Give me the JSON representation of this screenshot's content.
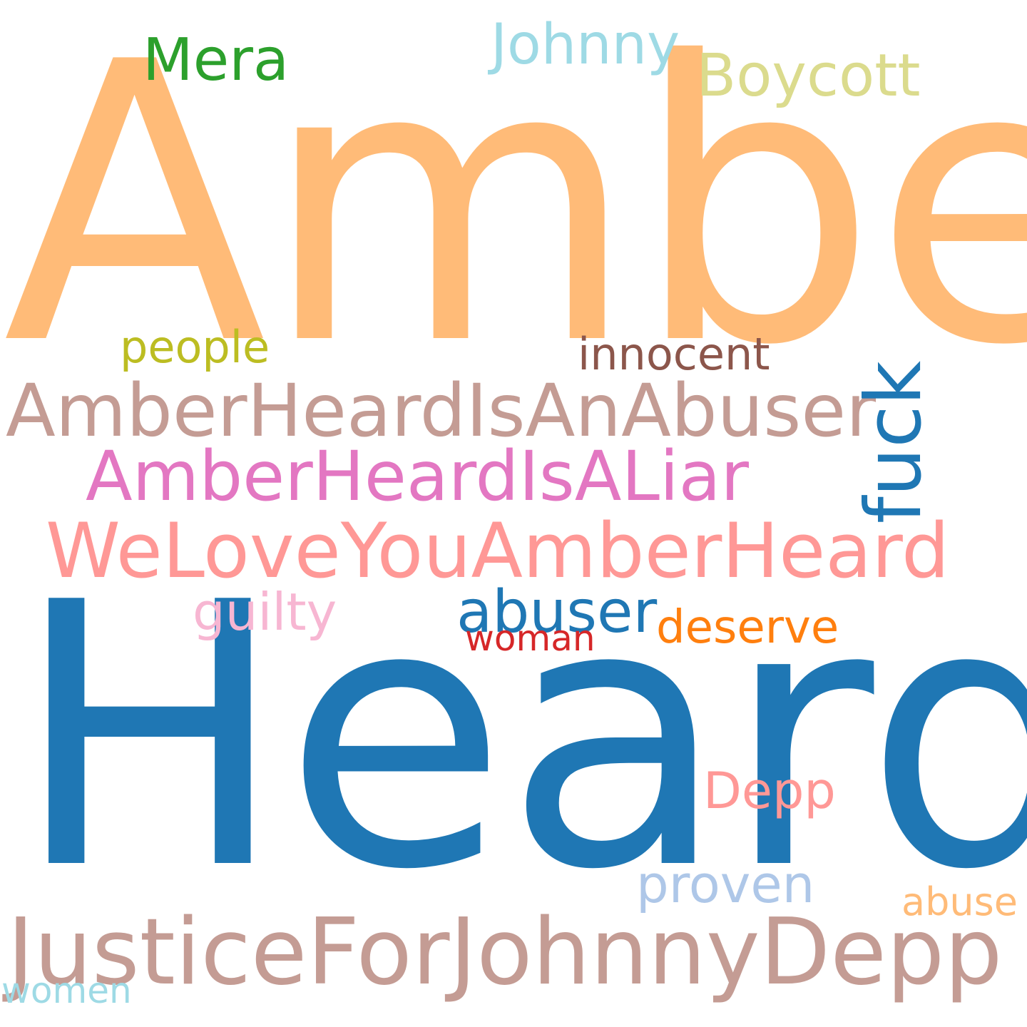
{
  "words": [
    {
      "id": "amber",
      "text": "Amber",
      "color": "#ffbb78"
    },
    {
      "id": "heard",
      "text": "Heard",
      "color": "#1f77b4"
    },
    {
      "id": "mera",
      "text": "Mera",
      "color": "#2ca02c"
    },
    {
      "id": "johnny",
      "text": "Johnny",
      "color": "#9edae5"
    },
    {
      "id": "boycott",
      "text": "Boycott",
      "color": "#dbdb8d"
    },
    {
      "id": "people",
      "text": "people",
      "color": "#bcbd22"
    },
    {
      "id": "innocent",
      "text": "innocent",
      "color": "#8c564b"
    },
    {
      "id": "amberheardisanabuser",
      "text": "AmberHeardIsAnAbuser",
      "color": "#c49c94"
    },
    {
      "id": "fuck",
      "text": "fuck",
      "color": "#1f77b4"
    },
    {
      "id": "amberheardisaliar",
      "text": "AmberHeardIsALiar",
      "color": "#e377c2"
    },
    {
      "id": "weloveyouamberheard",
      "text": "WeLoveYouAmberHeard",
      "color": "#ff9896"
    },
    {
      "id": "guilty",
      "text": "guilty",
      "color": "#f7b6d2"
    },
    {
      "id": "abuser",
      "text": "abuser",
      "color": "#1f77b4"
    },
    {
      "id": "deserve",
      "text": "deserve",
      "color": "#ff7f0e"
    },
    {
      "id": "woman",
      "text": "woman",
      "color": "#d62728"
    },
    {
      "id": "depp",
      "text": "Depp",
      "color": "#ff9896"
    },
    {
      "id": "proven",
      "text": "proven",
      "color": "#aec7e8"
    },
    {
      "id": "abuse",
      "text": "abuse",
      "color": "#ffbb78"
    },
    {
      "id": "justiceforjohnnydepp",
      "text": "JusticeForJohnnyDepp",
      "color": "#c49c94"
    },
    {
      "id": "women",
      "text": "women",
      "color": "#9edae5"
    }
  ]
}
